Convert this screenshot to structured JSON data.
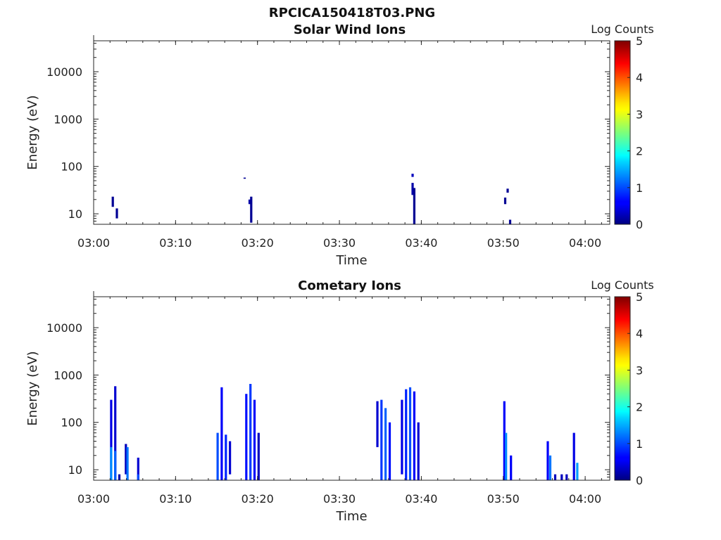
{
  "figure_title": "RPCICA150418T03.PNG",
  "colorbar": {
    "label": "Log Counts",
    "ticks": [
      "0",
      "1",
      "2",
      "3",
      "4",
      "5"
    ],
    "min": 0,
    "max": 5
  },
  "chart_data": [
    {
      "type": "heatmap",
      "title": "Solar Wind Ions",
      "xlabel": "Time",
      "ylabel": "Energy (eV)",
      "x_tick_labels": [
        "03:00",
        "03:10",
        "03:20",
        "03:30",
        "03:40",
        "03:50",
        "04:00"
      ],
      "y_tick_labels": [
        "10",
        "100",
        "1000",
        "10000"
      ],
      "xlim": [
        "03:00",
        "04:03"
      ],
      "ylim": [
        6,
        45000
      ],
      "y_scale": "log",
      "colorbar_label": "Log Counts",
      "clim": [
        0,
        5
      ],
      "cells": [
        {
          "t": "03:02.2",
          "e0": 14,
          "e1": 23,
          "v": 0.1
        },
        {
          "t": "03:02.7",
          "e0": 8,
          "e1": 13,
          "v": 0.1
        },
        {
          "t": "03:18.3",
          "e0": 55,
          "e1": 58,
          "v": 0.1
        },
        {
          "t": "03:18.9",
          "e0": 16,
          "e1": 20,
          "v": 0.2
        },
        {
          "t": "03:19.1",
          "e0": 6.5,
          "e1": 23,
          "v": 0.1
        },
        {
          "t": "03:38.8",
          "e0": 60,
          "e1": 70,
          "v": 0.3
        },
        {
          "t": "03:38.8",
          "e0": 25,
          "e1": 45,
          "v": 0.2
        },
        {
          "t": "03:39.0",
          "e0": 6,
          "e1": 35,
          "v": 0.1
        },
        {
          "t": "03:50.1",
          "e0": 16,
          "e1": 22,
          "v": 0.1
        },
        {
          "t": "03:50.4",
          "e0": 28,
          "e1": 34,
          "v": 0.1
        },
        {
          "t": "03:50.7",
          "e0": 6,
          "e1": 7.5,
          "v": 0.1
        }
      ]
    },
    {
      "type": "heatmap",
      "title": "Cometary Ions",
      "xlabel": "Time",
      "ylabel": "Energy (eV)",
      "x_tick_labels": [
        "03:00",
        "03:10",
        "03:20",
        "03:30",
        "03:40",
        "03:50",
        "04:00"
      ],
      "y_tick_labels": [
        "10",
        "100",
        "1000",
        "10000"
      ],
      "xlim": [
        "03:00",
        "04:03"
      ],
      "ylim": [
        6,
        45000
      ],
      "y_scale": "log",
      "colorbar_label": "Log Counts",
      "clim": [
        0,
        5
      ],
      "cells": [
        {
          "t": "03:02.0",
          "e0": 6,
          "e1": 300,
          "v": 0.5
        },
        {
          "t": "03:02.0",
          "e0": 6,
          "e1": 30,
          "v": 1.3
        },
        {
          "t": "03:02.5",
          "e0": 6,
          "e1": 580,
          "v": 0.4
        },
        {
          "t": "03:02.5",
          "e0": 6,
          "e1": 25,
          "v": 1.1
        },
        {
          "t": "03:03.0",
          "e0": 6,
          "e1": 8,
          "v": 0.2
        },
        {
          "t": "03:03.8",
          "e0": 8,
          "e1": 35,
          "v": 0.3
        },
        {
          "t": "03:04.0",
          "e0": 6,
          "e1": 30,
          "v": 1.2
        },
        {
          "t": "03:05.3",
          "e0": 6,
          "e1": 18,
          "v": 0.4
        },
        {
          "t": "03:05.3",
          "e0": 6,
          "e1": 8,
          "v": 1.0
        },
        {
          "t": "03:15.0",
          "e0": 6,
          "e1": 60,
          "v": 1.0
        },
        {
          "t": "03:15.5",
          "e0": 6,
          "e1": 550,
          "v": 0.6
        },
        {
          "t": "03:16.0",
          "e0": 6,
          "e1": 55,
          "v": 0.8
        },
        {
          "t": "03:16.5",
          "e0": 8,
          "e1": 40,
          "v": 0.4
        },
        {
          "t": "03:18.5",
          "e0": 6,
          "e1": 400,
          "v": 0.7
        },
        {
          "t": "03:19.0",
          "e0": 6,
          "e1": 650,
          "v": 0.9
        },
        {
          "t": "03:19.5",
          "e0": 6,
          "e1": 300,
          "v": 0.6
        },
        {
          "t": "03:20.0",
          "e0": 6,
          "e1": 60,
          "v": 0.3
        },
        {
          "t": "03:34.5",
          "e0": 30,
          "e1": 280,
          "v": 0.4
        },
        {
          "t": "03:35.0",
          "e0": 6,
          "e1": 300,
          "v": 0.9
        },
        {
          "t": "03:35.5",
          "e0": 6,
          "e1": 200,
          "v": 1.1
        },
        {
          "t": "03:36.0",
          "e0": 6,
          "e1": 100,
          "v": 0.7
        },
        {
          "t": "03:37.5",
          "e0": 8,
          "e1": 300,
          "v": 0.5
        },
        {
          "t": "03:38.0",
          "e0": 6,
          "e1": 500,
          "v": 0.8
        },
        {
          "t": "03:38.5",
          "e0": 6,
          "e1": 550,
          "v": 1.0
        },
        {
          "t": "03:39.0",
          "e0": 6,
          "e1": 450,
          "v": 0.6
        },
        {
          "t": "03:39.5",
          "e0": 6,
          "e1": 100,
          "v": 0.4
        },
        {
          "t": "03:50.0",
          "e0": 6,
          "e1": 280,
          "v": 0.6
        },
        {
          "t": "03:50.2",
          "e0": 6,
          "e1": 60,
          "v": 1.3
        },
        {
          "t": "03:50.8",
          "e0": 6,
          "e1": 20,
          "v": 0.6
        },
        {
          "t": "03:55.3",
          "e0": 6,
          "e1": 40,
          "v": 0.6
        },
        {
          "t": "03:55.6",
          "e0": 6,
          "e1": 20,
          "v": 1.2
        },
        {
          "t": "03:56.2",
          "e0": 6,
          "e1": 8,
          "v": 0.3
        },
        {
          "t": "03:57.0",
          "e0": 6,
          "e1": 8,
          "v": 0.3
        },
        {
          "t": "03:57.6",
          "e0": 6,
          "e1": 8,
          "v": 0.3
        },
        {
          "t": "03:58.5",
          "e0": 6,
          "e1": 60,
          "v": 0.5
        },
        {
          "t": "03:58.9",
          "e0": 6,
          "e1": 14,
          "v": 1.4
        }
      ]
    }
  ]
}
